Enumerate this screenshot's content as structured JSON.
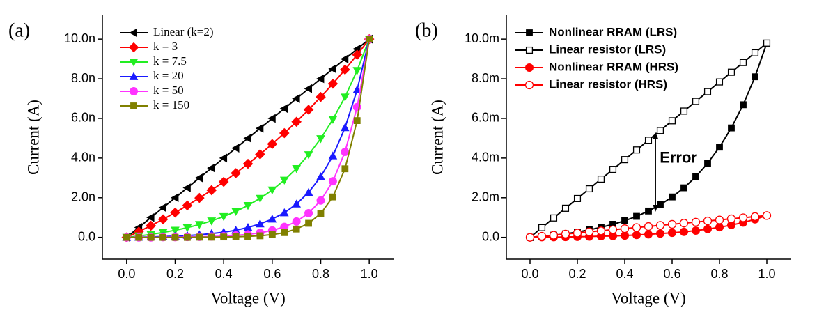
{
  "chart_data": [
    {
      "type": "line",
      "panel_label": "(a)",
      "x_label": "Voltage (V)",
      "y_label": "Current (A)",
      "x": [
        0,
        0.05,
        0.1,
        0.15,
        0.2,
        0.25,
        0.3,
        0.35,
        0.4,
        0.45,
        0.5,
        0.55,
        0.6,
        0.65,
        0.7,
        0.75,
        0.8,
        0.85,
        0.9,
        0.95,
        1
      ],
      "series": [
        {
          "name": "Linear (k=2)",
          "color": "#000000",
          "marker": "triangle-left",
          "filled": true,
          "values": [
            0,
            0.5,
            1,
            1.5,
            2,
            2.5,
            3,
            3.5,
            4,
            4.5,
            5,
            5.5,
            6,
            6.5,
            7,
            7.5,
            8,
            8.5,
            9,
            9.5,
            10
          ]
        },
        {
          "name": "k = 3",
          "color": "#ff0000",
          "marker": "diamond",
          "filled": true,
          "values": [
            0,
            0.29,
            0.59,
            0.91,
            1.25,
            1.61,
            1.99,
            2.38,
            2.8,
            3.24,
            3.71,
            4.19,
            4.71,
            5.26,
            5.83,
            6.44,
            7.08,
            7.75,
            8.46,
            9.21,
            10
          ]
        },
        {
          "name": "k = 7.5",
          "color": "#22ee22",
          "marker": "triangle-down",
          "filled": true,
          "values": [
            0,
            0.07,
            0.15,
            0.25,
            0.36,
            0.49,
            0.65,
            0.83,
            1.05,
            1.31,
            1.61,
            1.97,
            2.39,
            2.89,
            3.47,
            4.17,
            4.98,
            5.95,
            7.08,
            8.42,
            10
          ]
        },
        {
          "name": "k = 20",
          "color": "#1a1aff",
          "marker": "triangle-up",
          "filled": true,
          "values": [
            0,
            0.01,
            0.02,
            0.04,
            0.06,
            0.09,
            0.13,
            0.19,
            0.26,
            0.36,
            0.5,
            0.68,
            0.92,
            1.24,
            1.68,
            2.27,
            3.06,
            4.11,
            5.53,
            7.44,
            10
          ]
        },
        {
          "name": "k = 50",
          "color": "#ff33ff",
          "marker": "circle",
          "filled": true,
          "values": [
            0,
            0,
            0,
            0.01,
            0.01,
            0.02,
            0.03,
            0.04,
            0.06,
            0.1,
            0.15,
            0.23,
            0.35,
            0.53,
            0.8,
            1.22,
            1.86,
            2.83,
            4.31,
            6.57,
            10
          ]
        },
        {
          "name": "k = 150",
          "color": "#808000",
          "marker": "square",
          "filled": true,
          "values": [
            0,
            0,
            0,
            0,
            0,
            0,
            0.01,
            0.01,
            0.02,
            0.03,
            0.05,
            0.08,
            0.14,
            0.24,
            0.42,
            0.71,
            1.2,
            2.04,
            3.46,
            5.89,
            10
          ]
        }
      ],
      "xlim": [
        -0.1,
        1.1
      ],
      "ylim": [
        -1.1,
        11.2
      ],
      "xticks": [
        {
          "value": 0,
          "label": "0.0"
        },
        0.2,
        0.4,
        0.6,
        0.8,
        {
          "value": 1,
          "label": "1.0"
        }
      ],
      "yticks": [
        {
          "value": 0,
          "label": "0.0"
        },
        {
          "value": 2,
          "label": "2.0n"
        },
        {
          "value": 4,
          "label": "4.0n"
        },
        {
          "value": 6,
          "label": "6.0n"
        },
        {
          "value": 8,
          "label": "8.0n"
        },
        {
          "value": 10,
          "label": "10.0n"
        }
      ],
      "legend": "upper left",
      "grid": false
    },
    {
      "type": "line",
      "panel_label": "(b)",
      "x_label": "Voltage (V)",
      "y_label": "Current (A)",
      "x": [
        0,
        0.05,
        0.1,
        0.15,
        0.2,
        0.25,
        0.3,
        0.35,
        0.4,
        0.45,
        0.5,
        0.55,
        0.6,
        0.65,
        0.7,
        0.75,
        0.8,
        0.85,
        0.9,
        0.95,
        1
      ],
      "series": [
        {
          "name": "Nonlinear RRAM (LRS)",
          "color": "#000000",
          "marker": "square",
          "filled": true,
          "values": [
            0,
            0.05,
            0.11,
            0.18,
            0.27,
            0.38,
            0.51,
            0.66,
            0.84,
            1.06,
            1.33,
            1.65,
            2.04,
            2.5,
            3.06,
            3.74,
            4.55,
            5.52,
            6.69,
            8.1,
            9.8
          ]
        },
        {
          "name": "Linear resistor (LRS)",
          "color": "#000000",
          "marker": "square",
          "filled": false,
          "values": [
            0,
            0.49,
            0.98,
            1.47,
            1.96,
            2.45,
            2.94,
            3.43,
            3.92,
            4.41,
            4.9,
            5.39,
            5.88,
            6.37,
            6.86,
            7.35,
            7.84,
            8.33,
            8.82,
            9.31,
            9.8
          ]
        },
        {
          "name": "Nonlinear RRAM (HRS)",
          "color": "#ff0000",
          "marker": "circle",
          "filled": true,
          "values": [
            0,
            0.01,
            0.01,
            0.02,
            0.03,
            0.04,
            0.06,
            0.07,
            0.09,
            0.12,
            0.15,
            0.19,
            0.23,
            0.28,
            0.34,
            0.42,
            0.51,
            0.62,
            0.75,
            0.91,
            1.1
          ]
        },
        {
          "name": "Linear resistor (HRS)",
          "color": "#ff0000",
          "marker": "circle",
          "filled": false,
          "values": [
            0,
            0.06,
            0.11,
            0.17,
            0.22,
            0.28,
            0.33,
            0.39,
            0.44,
            0.5,
            0.55,
            0.61,
            0.66,
            0.72,
            0.77,
            0.83,
            0.88,
            0.94,
            0.99,
            1.05,
            1.1
          ]
        }
      ],
      "annotations": [
        {
          "text": "Error",
          "arrow_x": 0.53,
          "arrow_y": [
            1.4,
            5.2
          ]
        }
      ],
      "xlim": [
        -0.1,
        1.1
      ],
      "ylim": [
        -1.1,
        11.2
      ],
      "xticks": [
        {
          "value": 0,
          "label": "0.0"
        },
        0.2,
        0.4,
        0.6,
        0.8,
        {
          "value": 1,
          "label": "1.0"
        }
      ],
      "yticks": [
        {
          "value": 0,
          "label": "0.0"
        },
        {
          "value": 2,
          "label": "2.0m"
        },
        {
          "value": 4,
          "label": "4.0m"
        },
        {
          "value": 6,
          "label": "6.0m"
        },
        {
          "value": 8,
          "label": "8.0m"
        },
        {
          "value": 10,
          "label": "10.0m"
        }
      ],
      "legend": "upper left",
      "grid": false
    }
  ]
}
